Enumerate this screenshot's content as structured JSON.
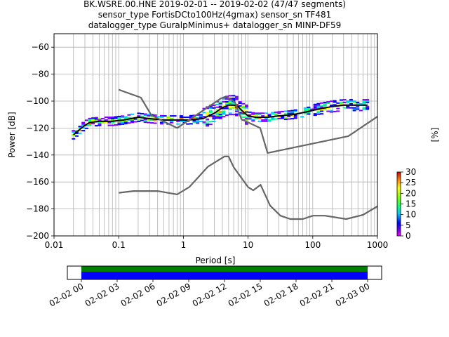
{
  "chart_data": {
    "type": "line",
    "title_lines": [
      "BK.WSRE.00.HNE   2019-02-01 -- 2019-02-02  (47/47 segments)",
      "sensor_type FortisDCto100Hz(4gmax) sensor_sn TF481",
      "datalogger_type GuralpMinimus+ datalogger_sn MINP-DF59"
    ],
    "xlabel": "Period [s]",
    "ylabel": "Power [dB]",
    "xscale": "log",
    "xlim": [
      0.01,
      1000
    ],
    "ylim": [
      -200,
      -50
    ],
    "x_ticks": [
      {
        "v": 0.01,
        "label": "0.01"
      },
      {
        "v": 0.1,
        "label": "0.1"
      },
      {
        "v": 1,
        "label": "1"
      },
      {
        "v": 10,
        "label": "10"
      },
      {
        "v": 100,
        "label": "100"
      },
      {
        "v": 1000,
        "label": "1000"
      }
    ],
    "y_ticks": [
      {
        "v": -60,
        "label": "−60"
      },
      {
        "v": -80,
        "label": "−80"
      },
      {
        "v": -100,
        "label": "−100"
      },
      {
        "v": -120,
        "label": "−120"
      },
      {
        "v": -140,
        "label": "−140"
      },
      {
        "v": -160,
        "label": "−160"
      },
      {
        "v": -180,
        "label": "−180"
      },
      {
        "v": -200,
        "label": "−200"
      }
    ],
    "grid": true,
    "series": [
      {
        "role": "mode",
        "color": "#000000",
        "x": [
          0.02,
          0.025,
          0.03,
          0.035,
          0.05,
          0.08,
          0.12,
          0.2,
          0.3,
          0.5,
          0.8,
          1.2,
          2,
          3,
          4,
          5,
          6,
          7,
          8,
          10,
          13,
          20,
          30,
          50,
          80,
          120,
          200,
          300,
          500,
          700
        ],
        "y": [
          -125,
          -121,
          -118,
          -116,
          -115,
          -115,
          -114,
          -112,
          -113,
          -114,
          -114,
          -114,
          -113,
          -109,
          -105,
          -103,
          -103,
          -104,
          -107,
          -111,
          -112,
          -112,
          -111,
          -110,
          -108,
          -106,
          -104,
          -103,
          -103,
          -103
        ]
      },
      {
        "role": "noise-model-high",
        "color": "#666666",
        "x": [
          0.1,
          0.22,
          0.32,
          0.8,
          3.8,
          4.6,
          6.3,
          7.9,
          15.4,
          20,
          354.8,
          1000
        ],
        "y": [
          -91.5,
          -97.4,
          -110.5,
          -120,
          -98,
          -96.5,
          -101,
          -113.5,
          -120,
          -138.5,
          -126,
          -111.5
        ]
      },
      {
        "role": "noise-model-low",
        "color": "#666666",
        "x": [
          0.1,
          0.17,
          0.4,
          0.8,
          1.24,
          2.4,
          4.3,
          5,
          6,
          10,
          12,
          15.6,
          21.9,
          31.6,
          45,
          70,
          101,
          154,
          328,
          600,
          1000
        ],
        "y": [
          -168,
          -166.7,
          -166.7,
          -169.2,
          -163.7,
          -148.6,
          -141.1,
          -141.1,
          -149,
          -163.8,
          -166.2,
          -162.1,
          -177.5,
          -185,
          -187.5,
          -187.5,
          -185,
          -185,
          -187.5,
          -184.4,
          -178
        ]
      }
    ],
    "colorbar": {
      "label": "[%]",
      "min": 0,
      "max": 30,
      "ticks": [
        {
          "v": 0,
          "label": "0"
        },
        {
          "v": 5,
          "label": "5"
        },
        {
          "v": 10,
          "label": "10"
        },
        {
          "v": 15,
          "label": "15"
        },
        {
          "v": 20,
          "label": "20"
        },
        {
          "v": 25,
          "label": "25"
        },
        {
          "v": 30,
          "label": "30"
        }
      ]
    },
    "timeline": {
      "ticks": [
        "02-02 00",
        "02-02 03",
        "02-02 06",
        "02-02 09",
        "02-02 12",
        "02-02 15",
        "02-02 18",
        "02-02 21",
        "02-03 00"
      ],
      "coverage_color": "#0000ff",
      "gap_color": "#008000"
    }
  }
}
